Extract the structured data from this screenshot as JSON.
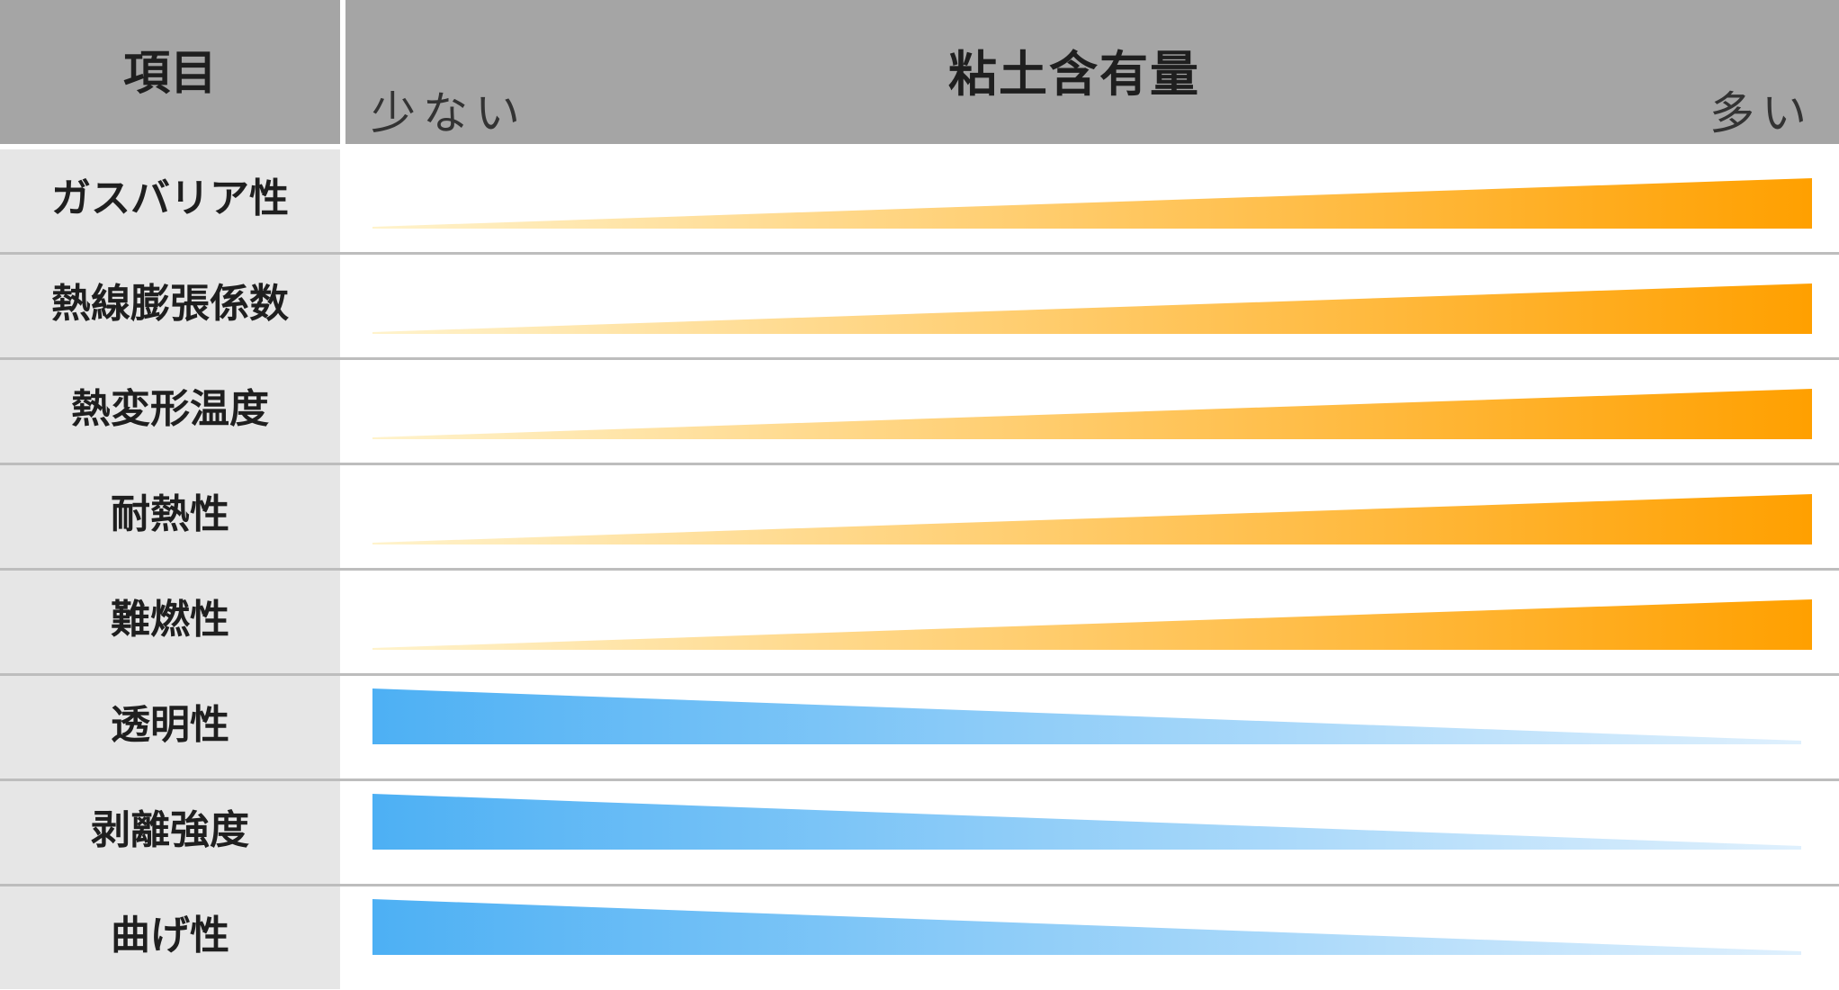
{
  "header": {
    "item_label": "項目",
    "title": "粘土含有量",
    "less_label": "少ない",
    "more_label": "多い"
  },
  "colors": {
    "increase_start": "#fff3cc",
    "increase_end": "#ffa000",
    "decrease_start": "#4db0f4",
    "decrease_end": "#dff0fd",
    "header_bg": "#a5a5a5",
    "label_bg": "#e6e6e6"
  },
  "rows": [
    {
      "label": "ガスバリア性",
      "trend": "increase"
    },
    {
      "label": "熱線膨張係数",
      "trend": "increase"
    },
    {
      "label": "熱変形温度",
      "trend": "increase"
    },
    {
      "label": "耐熱性",
      "trend": "increase"
    },
    {
      "label": "難燃性",
      "trend": "increase"
    },
    {
      "label": "透明性",
      "trend": "decrease"
    },
    {
      "label": "剥離強度",
      "trend": "decrease"
    },
    {
      "label": "曲げ性",
      "trend": "decrease"
    }
  ]
}
